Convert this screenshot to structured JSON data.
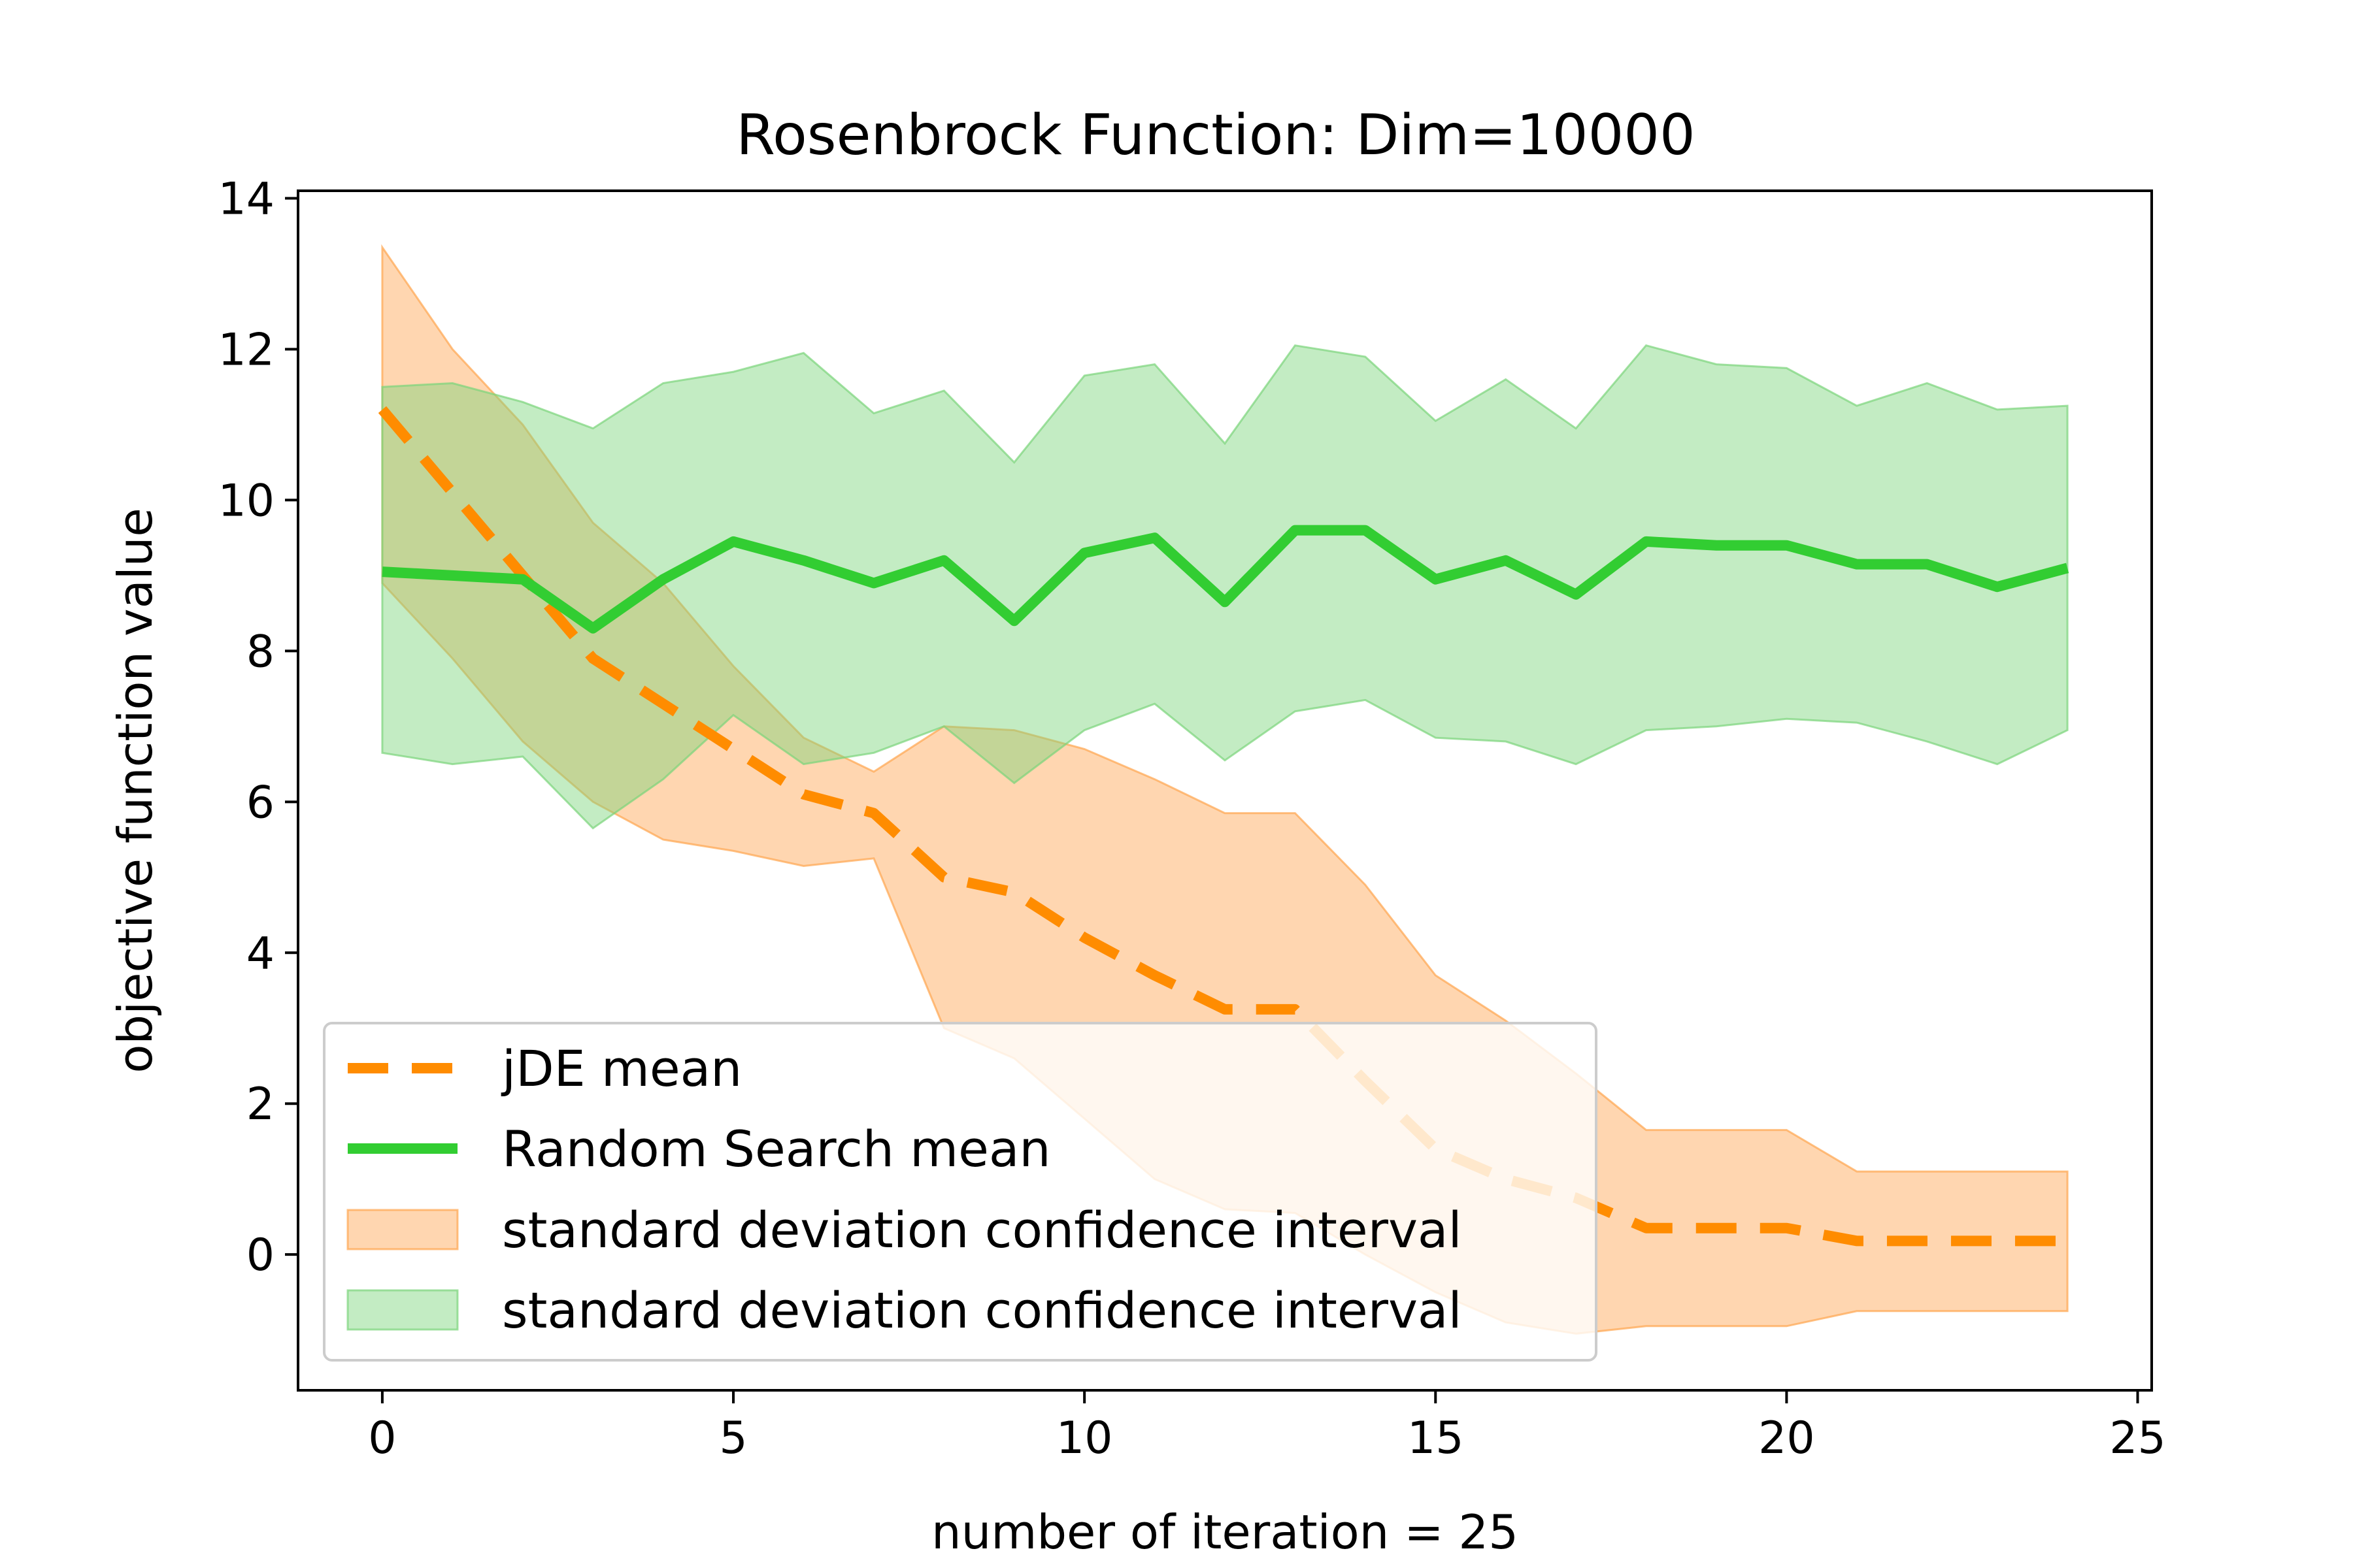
{
  "chart_data": {
    "type": "line",
    "title": "Rosenbrock Function: Dim=10000",
    "xlabel": "number of iteration = 25",
    "ylabel": "objective function value",
    "xlim": [
      -1.2,
      25.2
    ],
    "ylim": [
      -1.8,
      14.1
    ],
    "xticks": [
      0,
      5,
      10,
      15,
      20,
      25
    ],
    "yticks": [
      0,
      2,
      4,
      6,
      8,
      10,
      12,
      14
    ],
    "grid": false,
    "legend_position": "lower-left",
    "x": [
      0,
      1,
      2,
      3,
      4,
      5,
      6,
      7,
      8,
      9,
      10,
      11,
      12,
      13,
      14,
      15,
      16,
      17,
      18,
      19,
      20,
      21,
      22,
      23,
      24
    ],
    "series": [
      {
        "name": "jDE mean",
        "style": "dashed",
        "color": "#ff8c00",
        "values": [
          11.2,
          10.1,
          9.0,
          7.9,
          7.3,
          6.7,
          6.1,
          5.85,
          5.0,
          4.8,
          4.2,
          3.7,
          3.25,
          3.25,
          2.3,
          1.4,
          1.0,
          0.75,
          0.35,
          0.35,
          0.35,
          0.18,
          0.18,
          0.18,
          0.18
        ]
      },
      {
        "name": "Random Search mean",
        "style": "solid",
        "color": "#32cd32",
        "values": [
          9.05,
          9.0,
          8.95,
          8.3,
          8.95,
          9.45,
          9.2,
          8.9,
          9.2,
          8.4,
          9.3,
          9.5,
          8.65,
          9.6,
          9.6,
          8.95,
          9.2,
          8.75,
          9.45,
          9.4,
          9.4,
          9.15,
          9.15,
          8.85,
          9.1
        ]
      }
    ],
    "bands": [
      {
        "name": "standard deviation confidence interval",
        "color": "#ffa54f",
        "lower": [
          8.9,
          7.9,
          6.8,
          6.0,
          5.5,
          5.35,
          5.15,
          5.25,
          3.0,
          2.6,
          1.8,
          1.0,
          0.6,
          0.55,
          0.0,
          -0.5,
          -0.9,
          -1.05,
          -0.95,
          -0.95,
          -0.95,
          -0.75,
          -0.75,
          -0.75,
          -0.75
        ],
        "upper": [
          13.35,
          12.0,
          11.0,
          9.7,
          8.9,
          7.8,
          6.85,
          6.4,
          7.0,
          6.95,
          6.7,
          6.3,
          5.85,
          5.85,
          4.9,
          3.7,
          3.1,
          2.4,
          1.65,
          1.65,
          1.65,
          1.1,
          1.1,
          1.1,
          1.1
        ]
      },
      {
        "name": "standard deviation confidence interval",
        "color": "#7ad47a",
        "lower": [
          6.65,
          6.5,
          6.6,
          5.65,
          6.3,
          7.15,
          6.5,
          6.65,
          7.0,
          6.25,
          6.95,
          7.3,
          6.55,
          7.2,
          7.35,
          6.85,
          6.8,
          6.5,
          6.95,
          7.0,
          7.1,
          7.05,
          6.8,
          6.5,
          6.95
        ],
        "upper": [
          11.5,
          11.55,
          11.3,
          10.95,
          11.55,
          11.7,
          11.95,
          11.15,
          11.45,
          10.5,
          11.65,
          11.8,
          10.75,
          12.05,
          11.9,
          11.05,
          11.6,
          10.95,
          12.05,
          11.8,
          11.75,
          11.25,
          11.55,
          11.2,
          11.25
        ]
      }
    ]
  }
}
